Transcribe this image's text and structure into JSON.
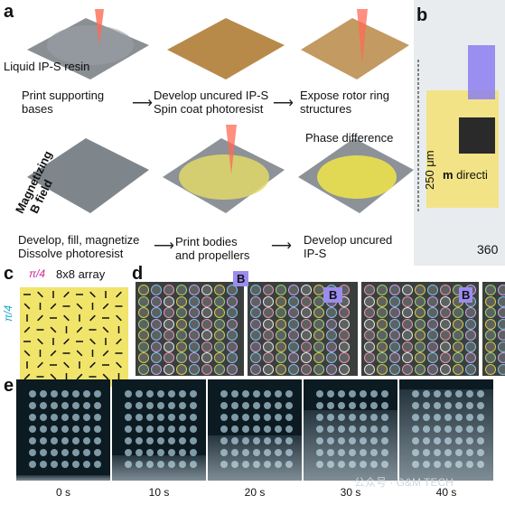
{
  "panel_a": {
    "letter": "a",
    "top_labels": {
      "resin": "Liquid IP-S resin",
      "step1": "Print supporting\nbases",
      "step2": "Develop uncured IP-S\nSpin coat photoresist",
      "step3": "Expose rotor ring\nstructures"
    },
    "bottom_labels": {
      "field_line1": "Magnetizing",
      "field_line2": "B field",
      "phase": "Phase difference",
      "step4": "Develop, fill, magnetize\nDissolve photoresist",
      "step5": "Print bodies\nand propellers",
      "step6": "Develop uncured\nIP-S"
    }
  },
  "panel_b": {
    "letter": "b",
    "height_label": "250 μm",
    "width_label": "360",
    "dir_prefix": "m",
    "dir_text": " directi"
  },
  "panel_c": {
    "letter": "c",
    "title": "8x8 array",
    "top_angle": "π/4",
    "side_angle": "π/4"
  },
  "panel_d": {
    "letter": "d",
    "field_label": "B"
  },
  "panel_e": {
    "letter": "e",
    "times": [
      "0 s",
      "10 s",
      "20 s",
      "30 s",
      "40 s"
    ]
  },
  "watermark": "公众号 · G&M TECH"
}
